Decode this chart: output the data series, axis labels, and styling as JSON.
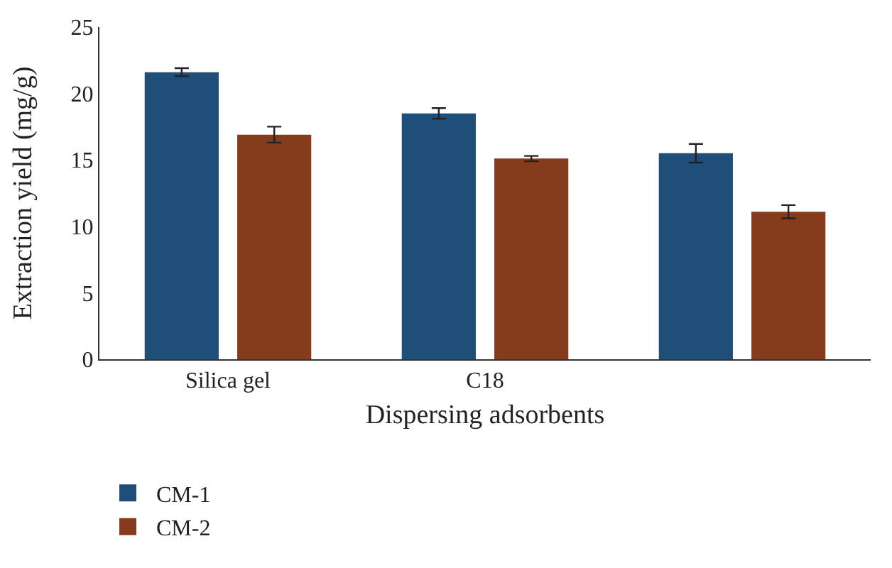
{
  "chart_data": {
    "type": "bar",
    "xlabel": "Dispersing adsorbents",
    "ylabel": "Extraction yield (mg/g)",
    "categories": [
      "Silica gel",
      "C18",
      null
    ],
    "series": [
      {
        "name": "CM-1",
        "color": "#1f4e79",
        "values": [
          21.6,
          18.5,
          15.5
        ],
        "errors": [
          0.3,
          0.4,
          0.7
        ]
      },
      {
        "name": "CM-2",
        "color": "#843c1c",
        "values": [
          16.9,
          15.1,
          11.1
        ],
        "errors": [
          0.6,
          0.2,
          0.5
        ]
      }
    ],
    "ylim": [
      0,
      25
    ],
    "yticks": [
      0,
      5,
      10,
      15,
      20,
      25
    ],
    "grid": false,
    "legend": "bottom left"
  }
}
